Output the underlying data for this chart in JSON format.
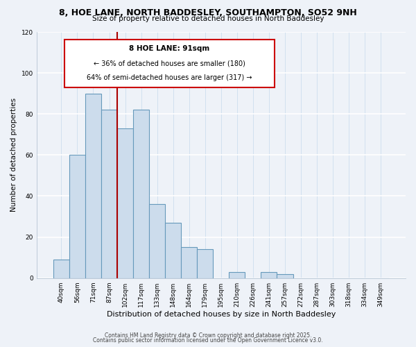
{
  "title1": "8, HOE LANE, NORTH BADDESLEY, SOUTHAMPTON, SO52 9NH",
  "title2": "Size of property relative to detached houses in North Baddesley",
  "xlabel": "Distribution of detached houses by size in North Baddesley",
  "ylabel": "Number of detached properties",
  "bar_labels": [
    "40sqm",
    "56sqm",
    "71sqm",
    "87sqm",
    "102sqm",
    "117sqm",
    "133sqm",
    "148sqm",
    "164sqm",
    "179sqm",
    "195sqm",
    "210sqm",
    "226sqm",
    "241sqm",
    "257sqm",
    "272sqm",
    "287sqm",
    "303sqm",
    "318sqm",
    "334sqm",
    "349sqm"
  ],
  "bar_values": [
    9,
    60,
    90,
    82,
    73,
    82,
    36,
    27,
    15,
    14,
    0,
    3,
    0,
    3,
    2,
    0,
    0,
    0,
    0,
    0,
    0
  ],
  "bar_color": "#ccdcec",
  "bar_edge_color": "#6699bb",
  "vline_x": 3.5,
  "vline_color": "#aa0000",
  "annotation_title": "8 HOE LANE: 91sqm",
  "annotation_line1": "← 36% of detached houses are smaller (180)",
  "annotation_line2": "64% of semi-detached houses are larger (317) →",
  "annotation_box_color": "#ffffff",
  "annotation_box_edge": "#cc0000",
  "ylim": [
    0,
    120
  ],
  "yticks": [
    0,
    20,
    40,
    60,
    80,
    100,
    120
  ],
  "footnote1": "Contains HM Land Registry data © Crown copyright and database right 2025.",
  "footnote2": "Contains public sector information licensed under the Open Government Licence v3.0.",
  "bg_color": "#eef2f8"
}
